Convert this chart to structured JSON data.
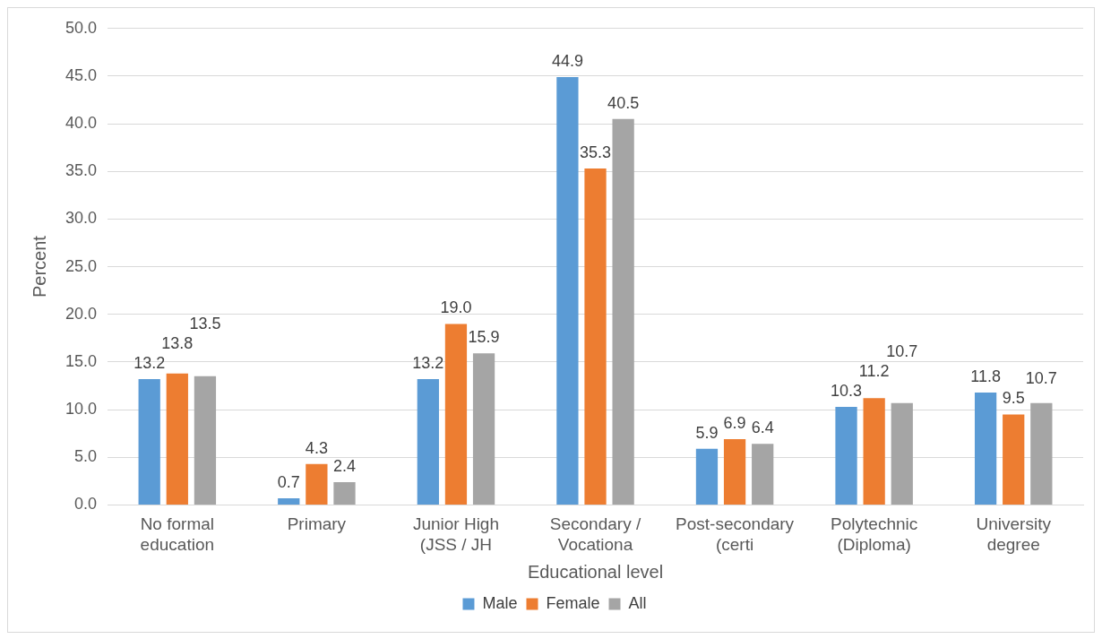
{
  "chart_data": {
    "type": "bar",
    "xlabel": "Educational level",
    "ylabel": "Percent",
    "categories": [
      "No formal education",
      "Primary",
      "Junior High (JSS / JH",
      "Secondary / Vocationa",
      "Post-secondary (certi",
      "Polytechnic (Diploma)",
      "University degree"
    ],
    "series": [
      {
        "name": "Male",
        "color": "#5b9bd5",
        "values": [
          13.2,
          0.7,
          13.2,
          44.9,
          5.9,
          10.3,
          11.8
        ],
        "value_labels": [
          "13.2",
          "0.7",
          "13.2",
          "44.9",
          "5.9",
          "10.3",
          "11.8"
        ]
      },
      {
        "name": "Female",
        "color": "#ed7d31",
        "values": [
          13.8,
          4.3,
          19.0,
          35.3,
          6.9,
          11.2,
          9.5
        ],
        "value_labels": [
          "13.8",
          "4.3",
          "19.0",
          "35.3",
          "6.9",
          "11.2",
          "9.5"
        ]
      },
      {
        "name": "All",
        "color": "#a5a5a5",
        "values": [
          13.5,
          2.4,
          15.9,
          40.5,
          6.4,
          10.7,
          10.7
        ],
        "value_labels": [
          "13.5",
          "2.4",
          "15.9",
          "40.5",
          "6.4",
          "10.7",
          "10.7"
        ]
      }
    ],
    "ylim": [
      0,
      50
    ],
    "yticks": [
      {
        "value": 0,
        "label": "0.0"
      },
      {
        "value": 5,
        "label": "5.0"
      },
      {
        "value": 10,
        "label": "10.0"
      },
      {
        "value": 15,
        "label": "15.0"
      },
      {
        "value": 20,
        "label": "20.0"
      },
      {
        "value": 25,
        "label": "25.0"
      },
      {
        "value": 30,
        "label": "30.0"
      },
      {
        "value": 35,
        "label": "35.0"
      },
      {
        "value": 40,
        "label": "40.0"
      },
      {
        "value": 45,
        "label": "45.0"
      },
      {
        "value": 50,
        "label": "50.0"
      }
    ],
    "grid": "y",
    "legend": "bottom"
  }
}
